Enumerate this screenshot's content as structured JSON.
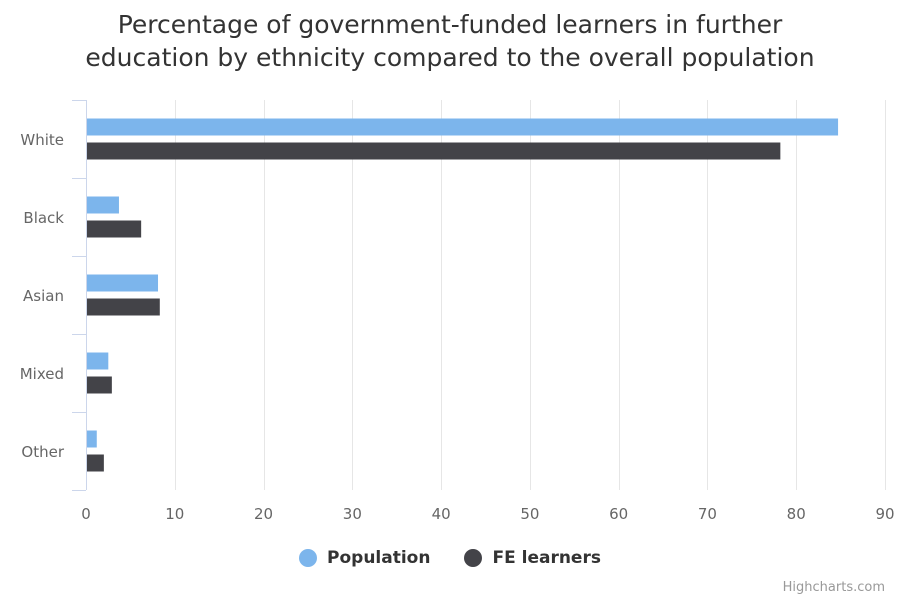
{
  "chart_data": {
    "type": "bar",
    "orientation": "horizontal",
    "title_lines": [
      "Percentage of government-funded learners in further",
      "education by ethnicity compared to the overall population"
    ],
    "categories": [
      "White",
      "Black",
      "Asian",
      "Mixed",
      "Other"
    ],
    "series": [
      {
        "name": "Population",
        "color": "#7cb5ec",
        "values": [
          84.6,
          3.6,
          8.0,
          2.4,
          1.1
        ]
      },
      {
        "name": "FE learners",
        "color": "#434348",
        "values": [
          78.1,
          6.1,
          8.2,
          2.8,
          1.9
        ]
      }
    ],
    "x_ticks": [
      0,
      10,
      20,
      30,
      40,
      50,
      60,
      70,
      80,
      90
    ],
    "xlim": [
      0,
      90
    ],
    "grid": true,
    "legend_position": "bottom-center"
  },
  "credits": "Highcharts.com"
}
